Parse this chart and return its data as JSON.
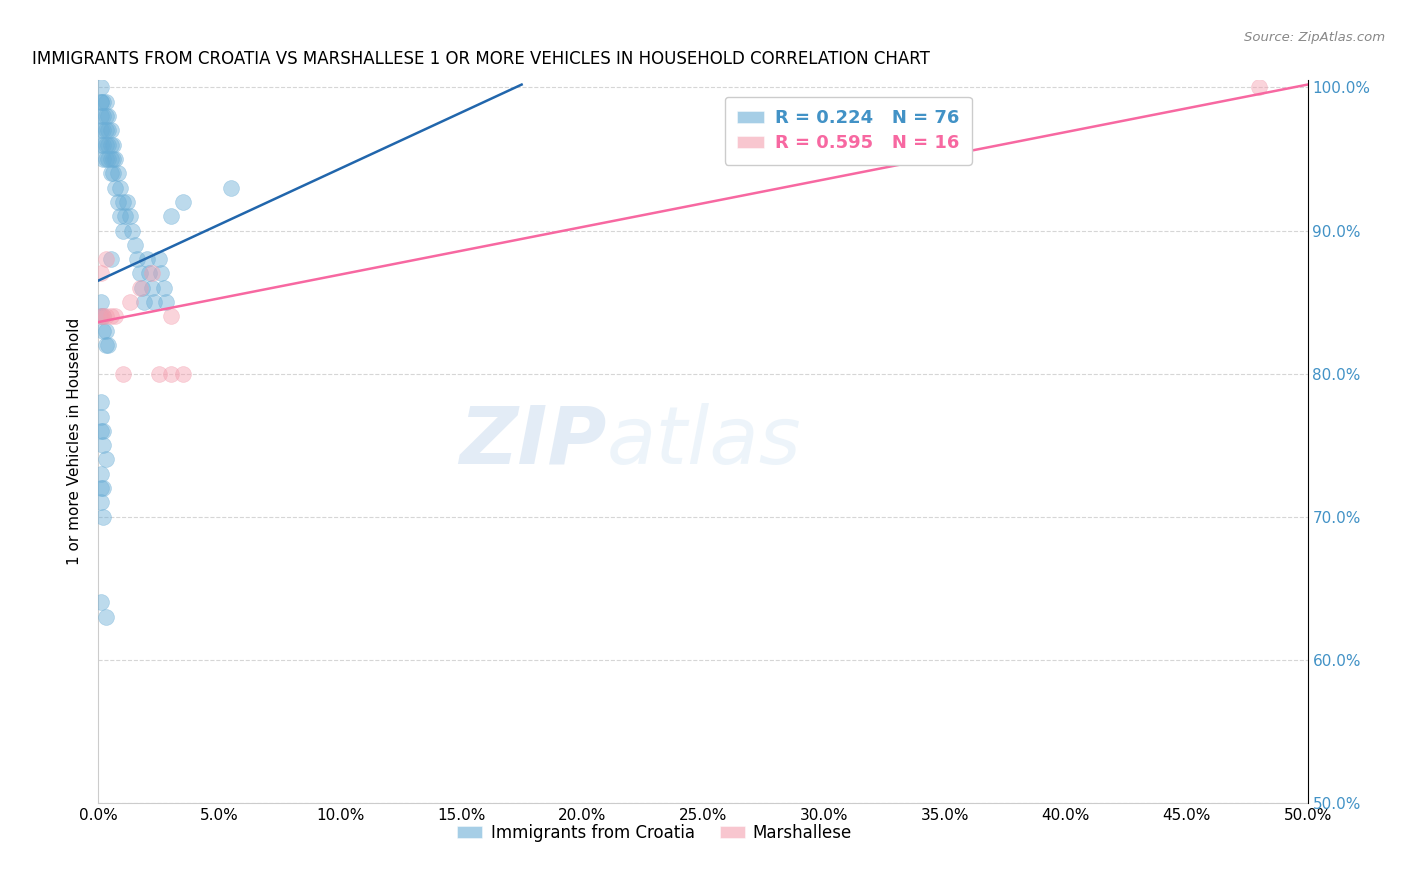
{
  "title": "IMMIGRANTS FROM CROATIA VS MARSHALLESE 1 OR MORE VEHICLES IN HOUSEHOLD CORRELATION CHART",
  "source": "Source: ZipAtlas.com",
  "ylabel": "1 or more Vehicles in Household",
  "legend_label1": "Immigrants from Croatia",
  "legend_label2": "Marshallese",
  "R1": 0.224,
  "N1": 76,
  "R2": 0.595,
  "N2": 16,
  "xlim": [
    0.0,
    0.5
  ],
  "ylim": [
    0.5,
    1.005
  ],
  "ytick_vals": [
    0.5,
    0.6,
    0.7,
    0.8,
    0.9,
    1.0
  ],
  "ytick_labels": [
    "50.0%",
    "60.0%",
    "70.0%",
    "80.0%",
    "90.0%",
    "100.0%"
  ],
  "xtick_vals": [
    0.0,
    0.05,
    0.1,
    0.15,
    0.2,
    0.25,
    0.3,
    0.35,
    0.4,
    0.45,
    0.5
  ],
  "xtick_labels": [
    "0.0%",
    "5.0%",
    "10.0%",
    "15.0%",
    "20.0%",
    "25.0%",
    "30.0%",
    "35.0%",
    "40.0%",
    "45.0%",
    "50.0%"
  ],
  "color_blue": "#6baed6",
  "color_pink": "#f4a0b0",
  "color_line_blue": "#2166ac",
  "color_line_pink": "#f768a1",
  "color_text_blue": "#4292c6",
  "color_text_pink": "#f768a1",
  "watermark_zip": "ZIP",
  "watermark_atlas": "atlas",
  "blue_line_x0": 0.0,
  "blue_line_y0": 0.865,
  "blue_line_x1": 0.175,
  "blue_line_y1": 1.002,
  "pink_line_x0": 0.0,
  "pink_line_y0": 0.836,
  "pink_line_x1": 0.5,
  "pink_line_y1": 1.002,
  "blue_x": [
    0.001,
    0.001,
    0.001,
    0.001,
    0.001,
    0.001,
    0.002,
    0.002,
    0.002,
    0.002,
    0.002,
    0.003,
    0.003,
    0.003,
    0.003,
    0.003,
    0.004,
    0.004,
    0.004,
    0.004,
    0.005,
    0.005,
    0.005,
    0.005,
    0.006,
    0.006,
    0.006,
    0.007,
    0.007,
    0.008,
    0.008,
    0.009,
    0.009,
    0.01,
    0.01,
    0.011,
    0.012,
    0.013,
    0.014,
    0.015,
    0.016,
    0.017,
    0.018,
    0.019,
    0.02,
    0.021,
    0.022,
    0.023,
    0.025,
    0.026,
    0.027,
    0.028,
    0.03,
    0.001,
    0.001,
    0.002,
    0.002,
    0.003,
    0.003,
    0.004,
    0.005,
    0.001,
    0.001,
    0.001,
    0.002,
    0.002,
    0.003,
    0.035,
    0.055,
    0.001,
    0.001,
    0.002,
    0.001,
    0.002,
    0.001,
    0.003
  ],
  "blue_y": [
    1.0,
    0.99,
    0.99,
    0.98,
    0.97,
    0.96,
    0.99,
    0.98,
    0.97,
    0.96,
    0.95,
    0.99,
    0.98,
    0.97,
    0.96,
    0.95,
    0.98,
    0.97,
    0.96,
    0.95,
    0.97,
    0.96,
    0.95,
    0.94,
    0.96,
    0.95,
    0.94,
    0.95,
    0.93,
    0.94,
    0.92,
    0.93,
    0.91,
    0.92,
    0.9,
    0.91,
    0.92,
    0.91,
    0.9,
    0.89,
    0.88,
    0.87,
    0.86,
    0.85,
    0.88,
    0.87,
    0.86,
    0.85,
    0.88,
    0.87,
    0.86,
    0.85,
    0.91,
    0.85,
    0.84,
    0.84,
    0.83,
    0.83,
    0.82,
    0.82,
    0.88,
    0.78,
    0.77,
    0.76,
    0.76,
    0.75,
    0.74,
    0.92,
    0.93,
    0.73,
    0.72,
    0.72,
    0.71,
    0.7,
    0.64,
    0.63
  ],
  "pink_x": [
    0.001,
    0.001,
    0.002,
    0.003,
    0.003,
    0.005,
    0.007,
    0.01,
    0.013,
    0.017,
    0.022,
    0.03,
    0.03,
    0.025,
    0.035,
    0.48
  ],
  "pink_y": [
    0.87,
    0.84,
    0.84,
    0.88,
    0.84,
    0.84,
    0.84,
    0.8,
    0.85,
    0.86,
    0.87,
    0.84,
    0.8,
    0.8,
    0.8,
    1.0
  ]
}
